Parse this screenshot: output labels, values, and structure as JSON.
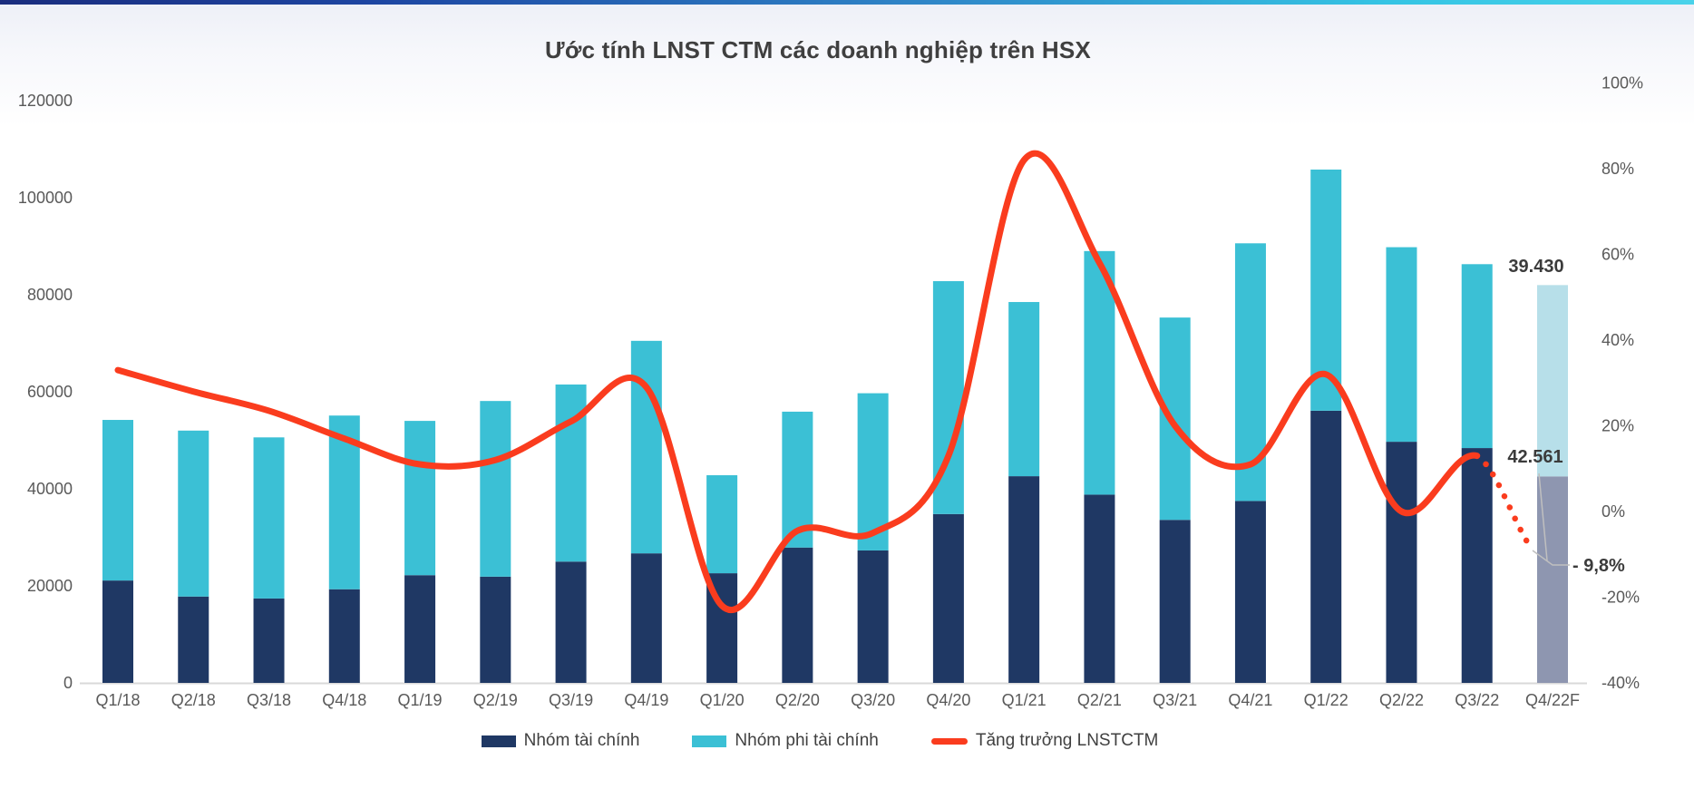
{
  "header": {
    "title": "Ước tính LNST CTM các doanh nghiệp trên HSX"
  },
  "legend": [
    {
      "label": "Nhóm tài chính",
      "color": "#1f3864",
      "swatch": "box"
    },
    {
      "label": "Nhóm phi tài chính",
      "color": "#3bc0d5",
      "swatch": "box"
    },
    {
      "label": "Tăng trưởng LNSTCTM",
      "color": "#fa3c1e",
      "swatch": "line"
    }
  ],
  "annotations": {
    "nonfinancial_forecast": "39.430",
    "financial_forecast": "42.561",
    "growth_forecast": "- 9,8%"
  },
  "chart_data": {
    "type": "bar+line",
    "title": "Ước tính LNST CTM các doanh nghiệp trên HSX",
    "categories": [
      "Q1/18",
      "Q2/18",
      "Q3/18",
      "Q4/18",
      "Q1/19",
      "Q2/19",
      "Q3/19",
      "Q4/19",
      "Q1/20",
      "Q2/20",
      "Q3/20",
      "Q4/20",
      "Q1/21",
      "Q2/21",
      "Q3/21",
      "Q4/21",
      "Q1/22",
      "Q2/22",
      "Q3/22",
      "Q4/22F"
    ],
    "series": [
      {
        "name": "Nhóm tài chính",
        "type": "bar",
        "stack": true,
        "axis": "left",
        "color": "#1f3864",
        "forecast_color": "#8e96b0",
        "values": [
          21100,
          17800,
          17400,
          19300,
          22200,
          21900,
          25000,
          26700,
          22600,
          27900,
          27300,
          34800,
          42600,
          38800,
          33600,
          37500,
          56100,
          49700,
          48400,
          42561
        ]
      },
      {
        "name": "Nhóm phi tài chính",
        "type": "bar",
        "stack": true,
        "axis": "left",
        "color": "#3bc0d5",
        "forecast_color": "#b7dfe9",
        "values": [
          33100,
          34200,
          33200,
          35800,
          31800,
          36200,
          36500,
          43800,
          20200,
          28000,
          32400,
          48000,
          35900,
          50200,
          41700,
          53100,
          49700,
          40100,
          37900,
          39430
        ]
      },
      {
        "name": "Tăng trưởng LNSTCTM",
        "type": "line",
        "axis": "right",
        "color": "#fa3c1e",
        "dotted_from_index": 18,
        "values": [
          33,
          28,
          23.5,
          17,
          11,
          12,
          21,
          29,
          -22,
          -4.5,
          -5,
          13,
          82,
          58,
          20,
          11,
          32,
          0,
          13,
          -9.8
        ]
      }
    ],
    "forecast_index": 19,
    "left_axis": {
      "min": 0,
      "max": 120000,
      "step": 20000,
      "ticks": [
        "120000",
        "100000",
        "80000",
        "60000",
        "40000",
        "20000",
        "0"
      ]
    },
    "right_axis": {
      "min": -40,
      "max": 100,
      "step": 20,
      "ticks": [
        "100%",
        "80%",
        "60%",
        "40%",
        "20%",
        "0%",
        "-20%",
        "-40%"
      ]
    },
    "grid": false,
    "legend_position": "bottom",
    "colors": {
      "axis_text": "#595959",
      "baseline": "#d9d9d9",
      "leader": "#bfbfbf",
      "annotation_text": "#3b3b3b"
    }
  }
}
